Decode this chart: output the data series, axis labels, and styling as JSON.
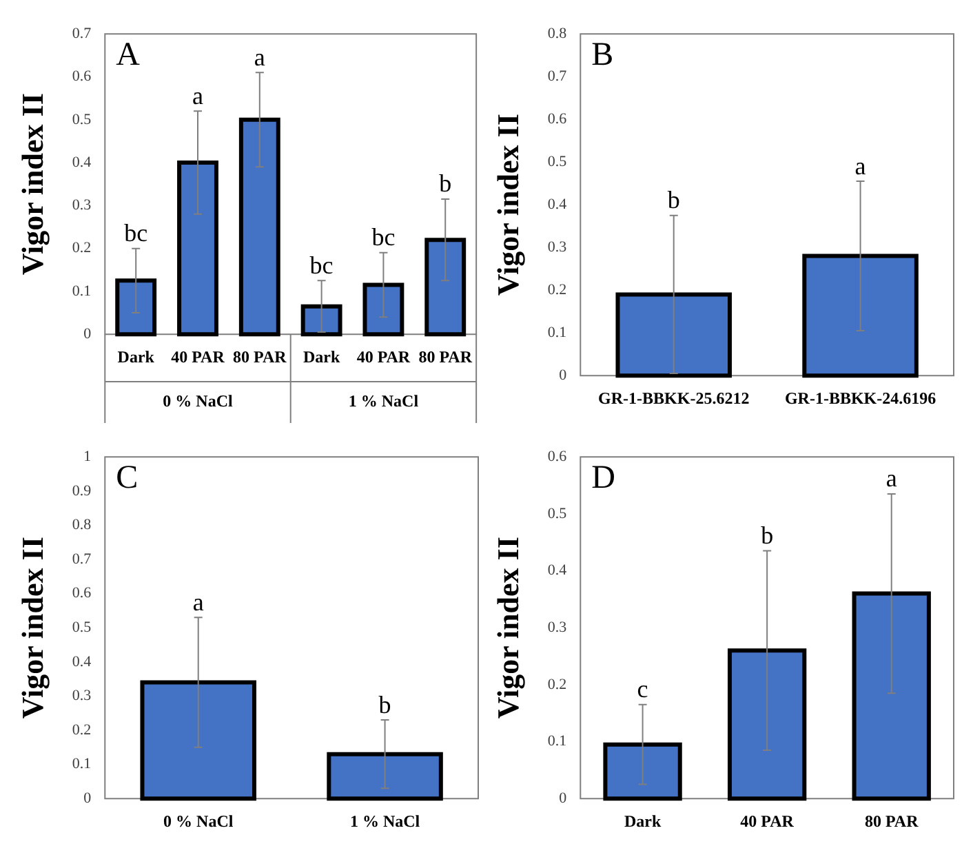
{
  "chart_data": [
    {
      "type": "bar",
      "title": "A",
      "ylabel": "Vigor index II",
      "categories": [
        "Dark",
        "40 PAR",
        "80 PAR",
        "Dark",
        "40 PAR",
        "80 PAR"
      ],
      "values": [
        0.125,
        0.4,
        0.5,
        0.065,
        0.115,
        0.22
      ],
      "errors": [
        0.075,
        0.12,
        0.11,
        0.06,
        0.075,
        0.095
      ],
      "value_labels": [
        null,
        null,
        null,
        "bc",
        "bc",
        "b"
      ],
      "color": "#4472c4",
      "ylim": [
        0,
        0.7
      ],
      "yticks": [
        0,
        0.1,
        0.2,
        0.3,
        0.4,
        0.5,
        0.6,
        0.7
      ],
      "annotations": [
        "0 % NaCl",
        "1 % NaCl",
        {
          "text": "bc",
          "x": "Dark",
          "y": 0.2
        },
        {
          "text": "a",
          "x": "40 PAR",
          "y": 0.52
        },
        {
          "text": "a",
          "x": "80 PAR",
          "y": 0.61
        }
      ],
      "grid": false,
      "legend": false
    },
    {
      "type": "bar",
      "title": "B",
      "ylabel": "Vigor index II",
      "categories": [
        "GR-1-BBKK-25.6212",
        "GR-1-BBKK-24.6196"
      ],
      "values": [
        0.19,
        0.28
      ],
      "errors": [
        0.185,
        0.175
      ],
      "annotations": [
        {
          "text": "b",
          "x": "GR-1-BBKK-25.6212",
          "y": 0.375
        },
        {
          "text": "a",
          "x": "GR-1-BBKK-24.6196",
          "y": 0.455
        }
      ],
      "color": "#4472c4",
      "ylim": [
        0,
        0.8
      ],
      "yticks": [
        0,
        0.1,
        0.2,
        0.3,
        0.4,
        0.5,
        0.6,
        0.7,
        0.8
      ],
      "grid": false,
      "legend": false
    },
    {
      "type": "bar",
      "title": "C",
      "ylabel": "Vigor index II",
      "categories": [
        "0 % NaCl",
        "1 % NaCl"
      ],
      "values": [
        0.34,
        0.13
      ],
      "errors": [
        0.19,
        0.1
      ],
      "value_labels": [
        "a",
        "b"
      ],
      "color": "#4472c4",
      "ylim": [
        0,
        1
      ],
      "yticks": [
        0,
        0.1,
        0.2,
        0.3,
        0.4,
        0.5,
        0.6,
        0.7,
        0.8,
        0.9,
        1
      ],
      "grid": false,
      "legend": false
    },
    {
      "type": "bar",
      "title": "D",
      "ylabel": "Vigor index II",
      "categories": [
        "Dark",
        "40 PAR",
        "80 PAR"
      ],
      "values": [
        0.095,
        0.26,
        0.36
      ],
      "errors": [
        0.07,
        0.175,
        0.175
      ],
      "annotations": [
        {
          "text": "c",
          "x": "Dark",
          "y": 0.165
        },
        {
          "text": "b",
          "x": "40 PAR",
          "y": 0.435
        },
        {
          "text": "a",
          "x": "80 PAR",
          "y": 0.535
        }
      ],
      "color": "#4472c4",
      "ylim": [
        0,
        0.6
      ],
      "yticks": [
        0,
        0.1,
        0.2,
        0.3,
        0.4,
        0.5,
        0.6
      ],
      "grid": false,
      "legend": false
    }
  ]
}
